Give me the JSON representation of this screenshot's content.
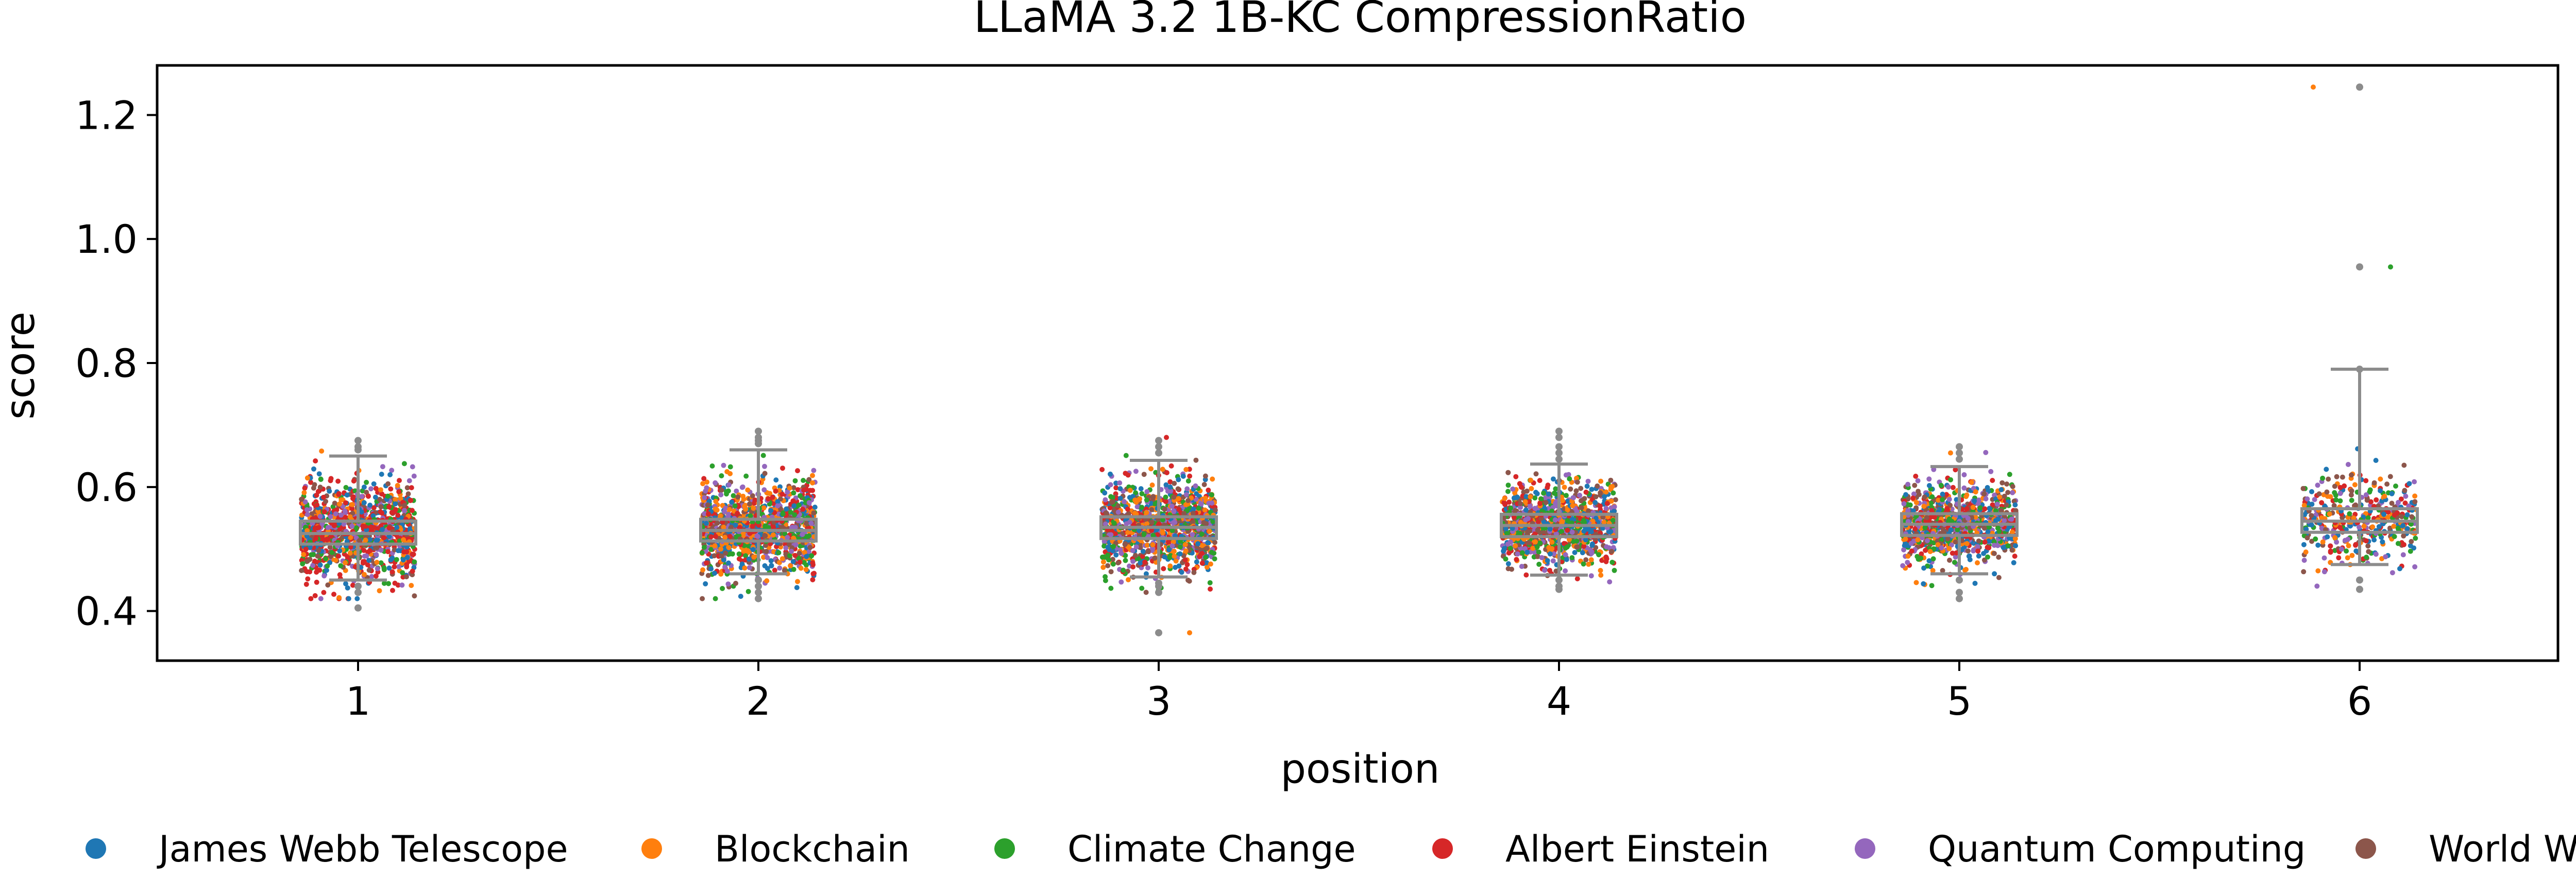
{
  "chart_data": {
    "type": "box",
    "title": "LLaMA 3.2 1B-KC CompressionRatio",
    "xlabel": "position",
    "ylabel": "score",
    "categories": [
      "1",
      "2",
      "3",
      "4",
      "5",
      "6"
    ],
    "ylim": [
      0.32,
      1.28
    ],
    "yticks": [
      0.4,
      0.6,
      0.8,
      1.0,
      1.2
    ],
    "ytick_labels": [
      "0.4",
      "0.6",
      "0.8",
      "1.0",
      "1.2"
    ],
    "grid": false,
    "legend_position": "bottom",
    "legend": [
      {
        "name": "James Webb Telescope",
        "color": "#1f77b4"
      },
      {
        "name": "Blockchain",
        "color": "#ff7f0e"
      },
      {
        "name": "Climate Change",
        "color": "#2ca02c"
      },
      {
        "name": "Albert Einstein",
        "color": "#d62728"
      },
      {
        "name": "Quantum Computing",
        "color": "#9467bd"
      },
      {
        "name": "World War II",
        "color": "#8c564b"
      }
    ],
    "box_color": "#8c8c8c",
    "boxes": [
      {
        "position": "1",
        "whisker_low": 0.45,
        "q1": 0.508,
        "median": 0.525,
        "q3": 0.545,
        "whisker_high": 0.65,
        "outliers": [
          0.43,
          0.66,
          0.675,
          0.665,
          0.44,
          0.405
        ]
      },
      {
        "position": "2",
        "whisker_low": 0.46,
        "q1": 0.513,
        "median": 0.53,
        "q3": 0.548,
        "whisker_high": 0.66,
        "outliers": [
          0.44,
          0.43,
          0.42,
          0.67,
          0.68,
          0.69,
          0.675,
          0.45
        ]
      },
      {
        "position": "3",
        "whisker_low": 0.455,
        "q1": 0.517,
        "median": 0.535,
        "q3": 0.552,
        "whisker_high": 0.643,
        "outliers": [
          0.44,
          0.43,
          0.365,
          0.655,
          0.665,
          0.675,
          0.445
        ]
      },
      {
        "position": "4",
        "whisker_low": 0.458,
        "q1": 0.52,
        "median": 0.538,
        "q3": 0.556,
        "whisker_high": 0.637,
        "outliers": [
          0.45,
          0.44,
          0.435,
          0.645,
          0.655,
          0.665,
          0.68,
          0.69
        ]
      },
      {
        "position": "5",
        "whisker_low": 0.46,
        "q1": 0.522,
        "median": 0.54,
        "q3": 0.557,
        "whisker_high": 0.633,
        "outliers": [
          0.45,
          0.43,
          0.42,
          0.645,
          0.655,
          0.665
        ]
      },
      {
        "position": "6",
        "whisker_low": 0.475,
        "q1": 0.527,
        "median": 0.545,
        "q3": 0.565,
        "whisker_high": 0.79,
        "outliers": [
          1.245,
          0.955,
          0.79,
          0.435,
          0.45
        ]
      }
    ],
    "series_spread": [
      {
        "position": "1",
        "center": 0.527,
        "spread": 0.04,
        "count": 1100,
        "tilt": "Albert Einstein"
      },
      {
        "position": "2",
        "center": 0.532,
        "spread": 0.036,
        "count": 1100
      },
      {
        "position": "3",
        "center": 0.536,
        "spread": 0.036,
        "count": 1100
      },
      {
        "position": "4",
        "center": 0.539,
        "spread": 0.034,
        "count": 1000
      },
      {
        "position": "5",
        "center": 0.541,
        "spread": 0.032,
        "count": 900
      },
      {
        "position": "6",
        "center": 0.546,
        "spread": 0.035,
        "count": 400
      }
    ],
    "extra_points": [
      {
        "position": "6",
        "value": 1.245,
        "series": "Blockchain"
      },
      {
        "position": "6",
        "value": 0.955,
        "series": "Climate Change"
      },
      {
        "position": "3",
        "value": 0.365,
        "series": "Blockchain"
      }
    ]
  }
}
